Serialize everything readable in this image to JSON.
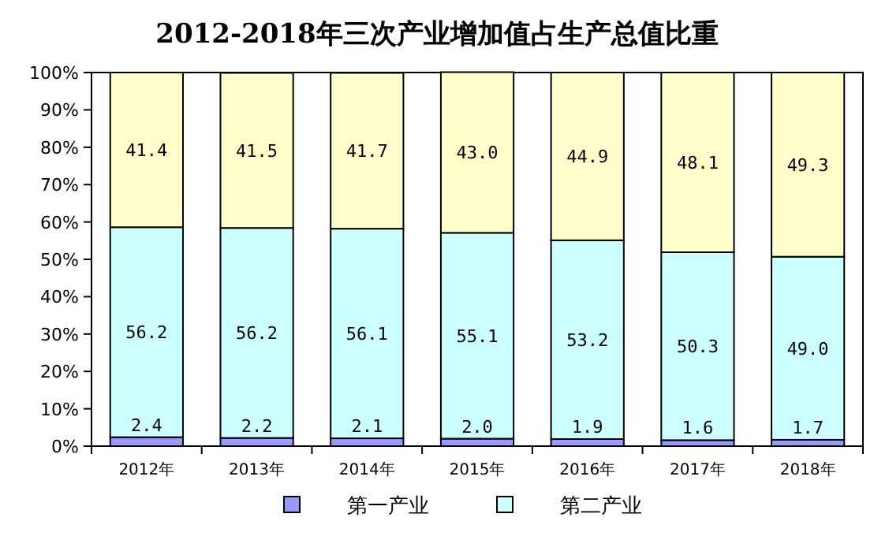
{
  "chart_data": {
    "type": "bar",
    "stacked": true,
    "title": "2012-2018年三次产业增加值占生产总值比重",
    "categories": [
      "2012年",
      "2013年",
      "2014年",
      "2015年",
      "2016年",
      "2017年",
      "2018年"
    ],
    "series": [
      {
        "name": "第一产业",
        "color": "#9999ff",
        "values": [
          2.4,
          2.2,
          2.1,
          2.0,
          1.9,
          1.6,
          1.7
        ],
        "value_labels": [
          "2.4",
          "2.2",
          "2.1",
          "2.0",
          "1.9",
          "1.6",
          "1.7"
        ]
      },
      {
        "name": "第二产业",
        "color": "#ccffff",
        "values": [
          56.2,
          56.2,
          56.1,
          55.1,
          53.2,
          50.3,
          49.0
        ],
        "value_labels": [
          "56.2",
          "56.2",
          "56.1",
          "55.1",
          "53.2",
          "50.3",
          "49.0"
        ]
      },
      {
        "color": "#ffffcc",
        "values": [
          41.4,
          41.5,
          41.7,
          43.0,
          44.9,
          48.1,
          49.3
        ],
        "value_labels": [
          "41.4",
          "41.5",
          "41.7",
          "43.0",
          "44.9",
          "48.1",
          "49.3"
        ]
      }
    ],
    "ylim": [
      0,
      100
    ],
    "yticks": [
      {
        "value": 0,
        "label": "0%"
      },
      {
        "value": 10,
        "label": "10%"
      },
      {
        "value": 20,
        "label": "20%"
      },
      {
        "value": 30,
        "label": "30%"
      },
      {
        "value": 40,
        "label": "40%"
      },
      {
        "value": 50,
        "label": "50%"
      },
      {
        "value": 60,
        "label": "60%"
      },
      {
        "value": 70,
        "label": "70%"
      },
      {
        "value": 80,
        "label": "80%"
      },
      {
        "value": 90,
        "label": "90%"
      },
      {
        "value": 100,
        "label": "100%"
      }
    ],
    "legend": "bottom"
  }
}
